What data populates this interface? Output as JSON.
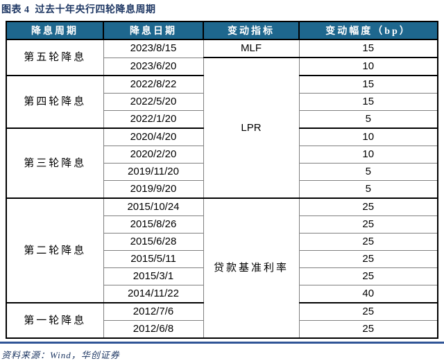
{
  "title": "图表 4  过去十年央行四轮降息周期",
  "source_note": "资料来源：Wind，华创证券",
  "colors": {
    "header_bg": "#1E678E",
    "header_text": "#FFFFFF",
    "title_text": "#1F3864",
    "divider": "#2F5496",
    "grid_light": "#7F7F7F",
    "grid_strong": "#000000"
  },
  "table": {
    "headers": [
      "降息周期",
      "降息日期",
      "变动指标",
      "变动幅度（bp）"
    ],
    "rows": [
      {
        "date": "2023/8/15",
        "bp": "15"
      },
      {
        "date": "2023/6/20",
        "bp": "10"
      },
      {
        "date": "2022/8/22",
        "bp": "15"
      },
      {
        "date": "2022/5/20",
        "bp": "15"
      },
      {
        "date": "2022/1/20",
        "bp": "5"
      },
      {
        "date": "2020/4/20",
        "bp": "10"
      },
      {
        "date": "2020/2/20",
        "bp": "10"
      },
      {
        "date": "2019/11/20",
        "bp": "5"
      },
      {
        "date": "2019/9/20",
        "bp": "5"
      },
      {
        "date": "2015/10/24",
        "bp": "25"
      },
      {
        "date": "2015/8/26",
        "bp": "25"
      },
      {
        "date": "2015/6/28",
        "bp": "25"
      },
      {
        "date": "2015/5/11",
        "bp": "25"
      },
      {
        "date": "2015/3/1",
        "bp": "25"
      },
      {
        "date": "2014/11/22",
        "bp": "40"
      },
      {
        "date": "2012/7/6",
        "bp": "25"
      },
      {
        "date": "2012/6/8",
        "bp": "25"
      }
    ],
    "cycle_spans": [
      {
        "label": "第五轮降息",
        "start": 0,
        "span": 2
      },
      {
        "label": "第四轮降息",
        "start": 2,
        "span": 3
      },
      {
        "label": "第三轮降息",
        "start": 5,
        "span": 4
      },
      {
        "label": "第二轮降息",
        "start": 9,
        "span": 6
      },
      {
        "label": "第一轮降息",
        "start": 15,
        "span": 2
      }
    ],
    "indicator_spans": [
      {
        "label": "MLF",
        "start": 0,
        "span": 1,
        "latin": true
      },
      {
        "label": "LPR",
        "start": 1,
        "span": 8,
        "latin": true
      },
      {
        "label": "贷款基准利率",
        "start": 9,
        "span": 8,
        "latin": false
      }
    ]
  }
}
